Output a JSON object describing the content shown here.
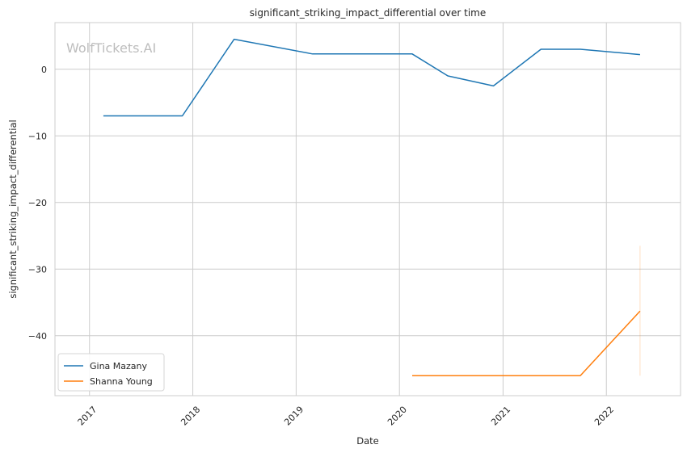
{
  "chart_data": {
    "type": "line",
    "title": "significant_striking_impact_differential over time",
    "xlabel": "Date",
    "ylabel": "significant_striking_impact_differential",
    "watermark": "WolfTickets.AI",
    "xlim": [
      "2016-09-01",
      "2022-09-20"
    ],
    "ylim": [
      -49,
      7
    ],
    "x_ticks": [
      "2017-01-01",
      "2018-01-01",
      "2019-01-01",
      "2020-01-01",
      "2021-01-01",
      "2022-01-01"
    ],
    "x_tick_labels": [
      "2017",
      "2018",
      "2019",
      "2020",
      "2021",
      "2022"
    ],
    "y_ticks": [
      0,
      -10,
      -20,
      -30,
      -40
    ],
    "y_tick_labels": [
      "0",
      "−10",
      "−20",
      "−30",
      "−40"
    ],
    "grid": true,
    "legend": "bottom-left",
    "series": [
      {
        "name": "Gina Mazany",
        "color": "#1f77b4",
        "x": [
          "2017-02-19",
          "2017-11-25",
          "2018-05-27",
          "2019-02-28",
          "2020-02-15",
          "2020-06-20",
          "2020-11-28",
          "2021-05-15",
          "2021-10-01",
          "2022-04-30"
        ],
        "y": [
          -7.0,
          -7.0,
          4.5,
          2.3,
          2.3,
          -1.0,
          -2.5,
          3.0,
          3.0,
          2.2
        ]
      },
      {
        "name": "Shanna Young",
        "color": "#ff7f0e",
        "x": [
          "2020-02-15",
          "2021-10-01",
          "2022-04-30"
        ],
        "y": [
          -46.0,
          -46.0,
          -36.3
        ],
        "error_band": {
          "x": "2022-04-30",
          "low": -46.0,
          "high": -26.5
        }
      }
    ]
  }
}
